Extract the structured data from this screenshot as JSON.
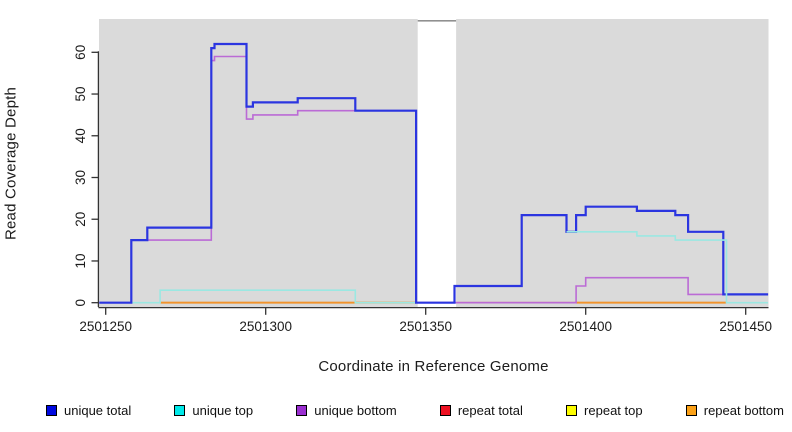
{
  "figure": {
    "background": "#ffffff",
    "panel_background": "#dadada",
    "axis_color": "#333333"
  },
  "chart_data": {
    "type": "line",
    "subtype": "step-after",
    "title": "",
    "xlabel": "Coordinate in Reference Genome",
    "ylabel": "Read Coverage Depth",
    "xlim": [
      2501248,
      2501457
    ],
    "ylim": [
      0,
      68
    ],
    "grid": false,
    "legend_position": "bottom",
    "x_ticks": [
      {
        "value": 2501250,
        "label": "2501250"
      },
      {
        "value": 2501300,
        "label": "2501300"
      },
      {
        "value": 2501350,
        "label": "2501350"
      },
      {
        "value": 2501400,
        "label": "2501400"
      },
      {
        "value": 2501450,
        "label": "2501450"
      }
    ],
    "y_ticks": [
      {
        "value": 0,
        "label": "0"
      },
      {
        "value": 10,
        "label": "10"
      },
      {
        "value": 20,
        "label": "20"
      },
      {
        "value": 30,
        "label": "30"
      },
      {
        "value": 40,
        "label": "40"
      },
      {
        "value": 50,
        "label": "50"
      },
      {
        "value": 60,
        "label": "60"
      }
    ],
    "masked_region": {
      "x_start": 2501347.5,
      "x_end": 2501359.5,
      "fill": "#ffffff",
      "top_border_color": "#909090"
    },
    "series": [
      {
        "name": "unique total",
        "swatch_color": "#0009e0",
        "line_color": "#2b35e0",
        "line_width": 2.2,
        "segments": [
          {
            "z": 6,
            "end": 2501457,
            "points": [
              [
                2501248,
                0
              ],
              [
                2501258,
                15
              ],
              [
                2501263,
                18
              ],
              [
                2501283,
                61
              ],
              [
                2501284,
                62
              ],
              [
                2501294,
                47
              ],
              [
                2501296,
                48
              ],
              [
                2501310,
                49
              ],
              [
                2501328,
                46
              ],
              [
                2501347,
                0
              ],
              [
                2501359,
                4
              ],
              [
                2501380,
                21
              ],
              [
                2501394,
                17
              ],
              [
                2501397,
                21
              ],
              [
                2501400,
                23
              ],
              [
                2501416,
                22
              ],
              [
                2501428,
                21
              ],
              [
                2501432,
                17
              ],
              [
                2501443,
                2
              ]
            ]
          }
        ]
      },
      {
        "name": "unique top",
        "swatch_color": "#00e9e9",
        "line_color": "#9be8e2",
        "line_width": 1.6,
        "segments": [
          {
            "z": 4,
            "end": 2501347,
            "points": [
              [
                2501248,
                0
              ],
              [
                2501267,
                3
              ],
              [
                2501328,
                0
              ]
            ]
          },
          {
            "z": 7,
            "end": 2501457,
            "points": [
              [
                2501394,
                17
              ],
              [
                2501416,
                16
              ],
              [
                2501428,
                15
              ],
              [
                2501444,
                0
              ]
            ]
          }
        ]
      },
      {
        "name": "unique bottom",
        "swatch_color": "#9a2fd0",
        "line_color": "#bb6bd5",
        "line_width": 1.6,
        "segments": [
          {
            "z": 5,
            "end": 2501457,
            "points": [
              [
                2501248,
                0
              ],
              [
                2501258,
                15
              ],
              [
                2501283,
                58
              ],
              [
                2501284,
                59
              ],
              [
                2501294,
                44
              ],
              [
                2501296,
                45
              ],
              [
                2501310,
                46
              ],
              [
                2501347,
                0
              ],
              [
                2501397,
                4
              ],
              [
                2501400,
                6
              ],
              [
                2501432,
                2
              ]
            ]
          }
        ]
      },
      {
        "name": "repeat total",
        "swatch_color": "#ee1122",
        "line_color": "#d04868",
        "line_width": 1.6,
        "segments": [
          {
            "z": 1,
            "end": 2501444,
            "points": [
              [
                2501267,
                0
              ]
            ]
          }
        ]
      },
      {
        "name": "repeat top",
        "swatch_color": "#fcfc00",
        "line_color": "#efe84e",
        "line_width": 1.6,
        "segments": [
          {
            "z": 2,
            "end": 2501347,
            "points": [
              [
                2501267,
                0
              ]
            ]
          },
          {
            "z": 2,
            "end": 2501444,
            "points": [
              [
                2501397,
                0
              ]
            ]
          }
        ]
      },
      {
        "name": "repeat bottom",
        "swatch_color": "#fba118",
        "line_color": "#f1932c",
        "line_width": 1.8,
        "segments": [
          {
            "z": 3,
            "end": 2501347,
            "points": [
              [
                2501267,
                0
              ]
            ]
          },
          {
            "z": 3,
            "end": 2501444,
            "points": [
              [
                2501397,
                0
              ]
            ]
          }
        ]
      }
    ]
  }
}
